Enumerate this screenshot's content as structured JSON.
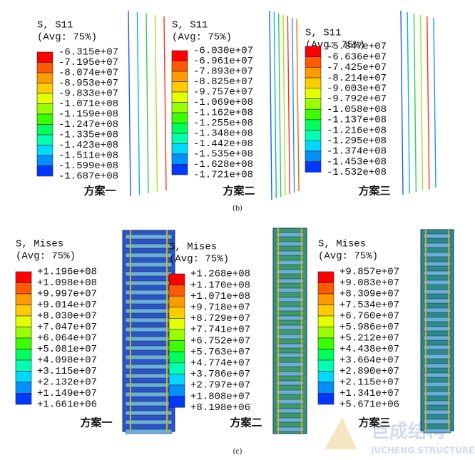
{
  "figure_b": {
    "label": "(b)",
    "panels": [
      {
        "title": "S, S11",
        "avg": "(Avg: 75%)",
        "labels": [
          "-6.315e+07",
          "-7.195e+07",
          "-8.074e+07",
          "-8.953e+07",
          "-9.833e+07",
          "-1.071e+08",
          "-1.159e+08",
          "-1.247e+08",
          "-1.335e+08",
          "-1.423e+08",
          "-1.511e+08",
          "-1.599e+08",
          "-1.687e+08"
        ],
        "caption": "方案一"
      },
      {
        "title": "S, S11",
        "avg": "(Avg: 75%)",
        "labels": [
          "-6.030e+07",
          "-6.961e+07",
          "-7.893e+07",
          "-8.825e+07",
          "-9.757e+07",
          "-1.069e+08",
          "-1.162e+08",
          "-1.255e+08",
          "-1.348e+08",
          "-1.442e+08",
          "-1.535e+08",
          "-1.628e+08",
          "-1.721e+08"
        ],
        "caption": "方案二"
      },
      {
        "title": "S, S11",
        "avg": "(Avg: 75%)",
        "labels": [
          "-5.847e+07",
          "-6.636e+07",
          "-7.425e+07",
          "-8.214e+07",
          "-9.003e+07",
          "-9.792e+07",
          "-1.058e+08",
          "-1.137e+08",
          "-1.216e+08",
          "-1.295e+08",
          "-1.374e+08",
          "-1.453e+08",
          "-1.532e+08"
        ],
        "caption": "方案三"
      }
    ]
  },
  "figure_c": {
    "label": "(c)",
    "panels": [
      {
        "title": "S, Mises",
        "avg": "(Avg: 75%)",
        "labels": [
          "+1.196e+08",
          "+1.098e+08",
          "+9.997e+07",
          "+9.014e+07",
          "+8.030e+07",
          "+7.047e+07",
          "+6.064e+07",
          "+5.081e+07",
          "+4.098e+07",
          "+3.115e+07",
          "+2.132e+07",
          "+1.149e+07",
          "+1.661e+06"
        ],
        "caption": "方案一"
      },
      {
        "title": "S, Mises",
        "avg": "(Avg: 75%)",
        "labels": [
          "+1.268e+08",
          "+1.170e+08",
          "+1.071e+08",
          "+9.718e+07",
          "+8.729e+07",
          "+7.741e+07",
          "+6.752e+07",
          "+5.763e+07",
          "+4.774e+07",
          "+3.786e+07",
          "+2.797e+07",
          "+1.808e+07",
          "+8.198e+06"
        ],
        "caption": "方案二"
      },
      {
        "title": "S, Mises",
        "avg": "(Avg: 75%)",
        "labels": [
          "+9.857e+07",
          "+9.083e+07",
          "+8.309e+07",
          "+7.534e+07",
          "+6.760e+07",
          "+5.986e+07",
          "+5.212e+07",
          "+4.438e+07",
          "+3.664e+07",
          "+2.890e+07",
          "+2.115e+07",
          "+1.341e+07",
          "+5.671e+06"
        ],
        "caption": "方案三"
      }
    ]
  },
  "watermark": {
    "name": "巨成结构",
    "subtitle": "JUCHENG STRUCTURE"
  }
}
